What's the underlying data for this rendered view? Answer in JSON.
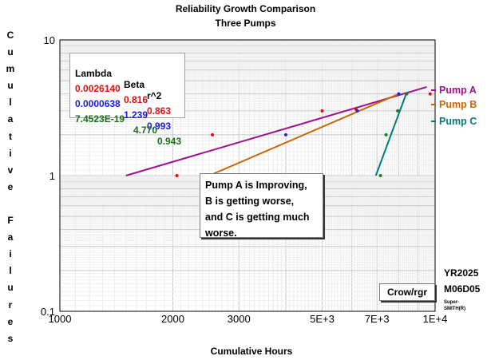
{
  "chart_data": {
    "type": "line",
    "title": "Reliability Growth Comparison",
    "subtitle": "Three Pumps",
    "xlabel": "Cumulative Hours",
    "ylabel": "Cumulative Failures",
    "x_scale": "log",
    "y_scale": "log",
    "xlim": [
      1000,
      10000
    ],
    "ylim": [
      0.1,
      10
    ],
    "x_ticks": [
      {
        "value": 1000,
        "label": "1000"
      },
      {
        "value": 2000,
        "label": "2000"
      },
      {
        "value": 3000,
        "label": "3000"
      },
      {
        "value": 5000,
        "label": "5E+3"
      },
      {
        "value": 7000,
        "label": "7E+3"
      },
      {
        "value": 10000,
        "label": "1E+4"
      }
    ],
    "y_ticks": [
      {
        "value": 0.1,
        "label": "0.1"
      },
      {
        "value": 1,
        "label": "1"
      },
      {
        "value": 10,
        "label": "10"
      }
    ],
    "grid": true,
    "legend_position": "right",
    "series": [
      {
        "name": "Pump A",
        "color": "#a0108f",
        "line": {
          "x": [
            1500,
            9500
          ],
          "y": [
            1.0,
            4.5
          ]
        },
        "points": {
          "x": [
            2050,
            2550,
            5000,
            6150,
            9700
          ],
          "y": [
            1,
            2,
            3,
            3.1,
            4
          ]
        },
        "point_color": "#e01010"
      },
      {
        "name": "Pump B",
        "color": "#cc6600",
        "line": {
          "x": [
            2500,
            8000
          ],
          "y": [
            1.0,
            4.0
          ]
        },
        "points": {
          "x": [
            2550,
            4000,
            6200,
            8000
          ],
          "y": [
            1,
            2,
            3,
            4
          ]
        },
        "point_color": "#2222dd"
      },
      {
        "name": "Pump C",
        "color": "#007c7c",
        "line": {
          "x": [
            6950,
            8400
          ],
          "y": [
            1.0,
            4.1
          ]
        },
        "points": {
          "x": [
            7150,
            7400,
            7950,
            8400
          ],
          "y": [
            1,
            2,
            3,
            4
          ]
        },
        "point_color": "#207a20"
      }
    ]
  },
  "chart_title": "Reliability Growth Comparison",
  "chart_subtitle": "Three Pumps",
  "y_axis_label": "C\nu\nm\nu\nl\na\nt\ni\nv\ne\n\nF\na\ni\nl\nu\nr\ne\ns",
  "x_axis_label": "Cumulative Hours",
  "stats_table": {
    "header": {
      "lambda": "Lambda",
      "beta": "Beta",
      "r2": "r^2"
    },
    "rows": [
      {
        "lambda": "0.0026140",
        "beta": "0.816",
        "r2": "0.863",
        "color": "#e01010"
      },
      {
        "lambda": "0.0000638",
        "beta": "1.239",
        "r2": "0.993",
        "color": "#1a1ae0"
      },
      {
        "lambda": "7.4523E-19",
        "beta": "4.770",
        "r2": "0.943",
        "color": "#1a6e1a"
      }
    ]
  },
  "note": {
    "line1": "Pump A is Improving,",
    "line2": "B is getting worse,",
    "line3": "and C is getting much",
    "line4": "worse."
  },
  "legend": [
    {
      "label": "Pump A",
      "color": "#a0108f"
    },
    {
      "label": "Pump B",
      "color": "#cc6600"
    },
    {
      "label": "Pump C",
      "color": "#007c7c"
    }
  ],
  "method_box": "Crow/rgr",
  "date_line1": "YR2025",
  "date_line2": "M06D05",
  "software_line1": "Super-",
  "software_line2": "SMITH(R)"
}
